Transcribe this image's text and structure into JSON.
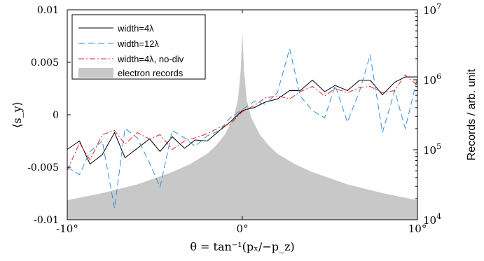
{
  "chart_data": {
    "type": "line",
    "xlabel": "θ = tan⁻¹(pₓ/−p_z)",
    "ylabel": "⟨s_y⟩",
    "y2label": "Records / arb. unit",
    "xlim": [
      -10,
      10
    ],
    "ylim": [
      -0.01,
      0.01
    ],
    "y2lim": [
      10000,
      10000000
    ],
    "y2scale": "log",
    "x_ticks": [
      {
        "value": -10,
        "label": "-10°"
      },
      {
        "value": 0,
        "label": "0°"
      },
      {
        "value": 10,
        "label": "10°"
      }
    ],
    "y_ticks": [
      {
        "value": 0.01,
        "label": "0.01"
      },
      {
        "value": 0.005,
        "label": "0.005"
      },
      {
        "value": 0,
        "label": "0"
      },
      {
        "value": -0.005,
        "label": "-0.005"
      },
      {
        "value": -0.01,
        "label": "-0.01"
      }
    ],
    "y2_ticks": [
      {
        "value": 10000000,
        "base": "10",
        "exp": "7"
      },
      {
        "value": 1000000,
        "base": "10",
        "exp": "6"
      },
      {
        "value": 100000,
        "base": "10",
        "exp": "5"
      },
      {
        "value": 10000,
        "base": "10",
        "exp": "4"
      }
    ],
    "grid": false,
    "legend_position": "top-left",
    "series": [
      {
        "name": "width=4λ",
        "color": "#000000",
        "style": "solid",
        "x": [
          -10,
          -9.3,
          -8.7,
          -8,
          -7.3,
          -6.7,
          -6,
          -5.3,
          -4.7,
          -4,
          -3.3,
          -2.7,
          -2,
          -1.3,
          -0.7,
          0,
          0.7,
          1.3,
          2,
          2.7,
          3.3,
          4,
          4.7,
          5.3,
          6,
          6.7,
          7.3,
          8,
          8.7,
          9.3,
          10
        ],
        "values": [
          -0.0033,
          -0.0025,
          -0.0047,
          -0.0038,
          -0.0017,
          -0.0041,
          -0.0032,
          -0.0023,
          -0.0035,
          -0.0021,
          -0.0032,
          -0.0024,
          -0.0025,
          -0.0015,
          -0.0007,
          0.0004,
          0.0007,
          0.0012,
          0.0015,
          0.0023,
          0.0023,
          0.0033,
          0.0022,
          0.0028,
          0.0023,
          0.0033,
          0.0033,
          0.0019,
          0.0031,
          0.0036,
          0.0036
        ]
      },
      {
        "name": "width=12λ",
        "color": "#2f8fe0",
        "style": "dashed",
        "x": [
          -10,
          -9.3,
          -8.7,
          -8,
          -7.3,
          -6.7,
          -6,
          -5.3,
          -4.7,
          -4,
          -3.3,
          -2.7,
          -2,
          -1.3,
          -0.7,
          0,
          0.7,
          1.3,
          2,
          2.7,
          3.3,
          4,
          4.7,
          5.3,
          6,
          6.7,
          7.3,
          8,
          8.7,
          9.3,
          10
        ],
        "values": [
          -0.005,
          -0.0057,
          -0.0035,
          -0.0025,
          -0.0089,
          -0.0013,
          -0.0022,
          -0.0046,
          -0.0069,
          -0.0015,
          -0.0022,
          -0.003,
          -0.002,
          -0.0015,
          -0.0003,
          0.0005,
          0.0013,
          0.001,
          0.0021,
          0.0063,
          0.0018,
          0.0004,
          -0.0003,
          0.0028,
          -0.0007,
          0.0023,
          0.0057,
          -0.0017,
          0.0023,
          -0.0013,
          0.0035
        ]
      },
      {
        "name": "width=4λ, no-div",
        "color": "#e8202a",
        "style": "dashdot",
        "x": [
          -10,
          -9.3,
          -8.7,
          -8,
          -7.3,
          -6.7,
          -6,
          -5.3,
          -4.7,
          -4,
          -3.3,
          -2.7,
          -2,
          -1.3,
          -0.7,
          0,
          0.7,
          1.3,
          2,
          2.7,
          3.3,
          4,
          4.7,
          5.3,
          6,
          6.7,
          7.3,
          8,
          8.7,
          9.3,
          10
        ],
        "values": [
          -0.0053,
          -0.0027,
          -0.0043,
          -0.0019,
          -0.0015,
          -0.0028,
          -0.0017,
          -0.0023,
          -0.0019,
          -0.0033,
          -0.0025,
          -0.0022,
          -0.0018,
          -0.0012,
          -0.0009,
          0.0003,
          0.0009,
          0.0016,
          0.0018,
          0.0015,
          0.0022,
          0.0027,
          0.0018,
          0.0025,
          0.0021,
          0.0026,
          0.0027,
          0.0021,
          0.0023,
          0.0038,
          0.0028
        ]
      },
      {
        "name": "electron records",
        "color": "#c8c8c8",
        "style": "area",
        "axis": "y2",
        "x": [
          -10,
          -8,
          -6,
          -4,
          -3,
          -2,
          -1.5,
          -1,
          -0.5,
          -0.25,
          -0.1,
          0,
          0.1,
          0.25,
          0.5,
          1,
          1.5,
          2,
          3,
          4,
          6,
          8,
          10
        ],
        "values": [
          19000,
          24000,
          32000,
          48000,
          62000,
          88000,
          115000,
          165000,
          290000,
          520000,
          1300000,
          4800000,
          1300000,
          520000,
          290000,
          165000,
          115000,
          88000,
          62000,
          48000,
          32000,
          24000,
          19000
        ]
      }
    ]
  }
}
